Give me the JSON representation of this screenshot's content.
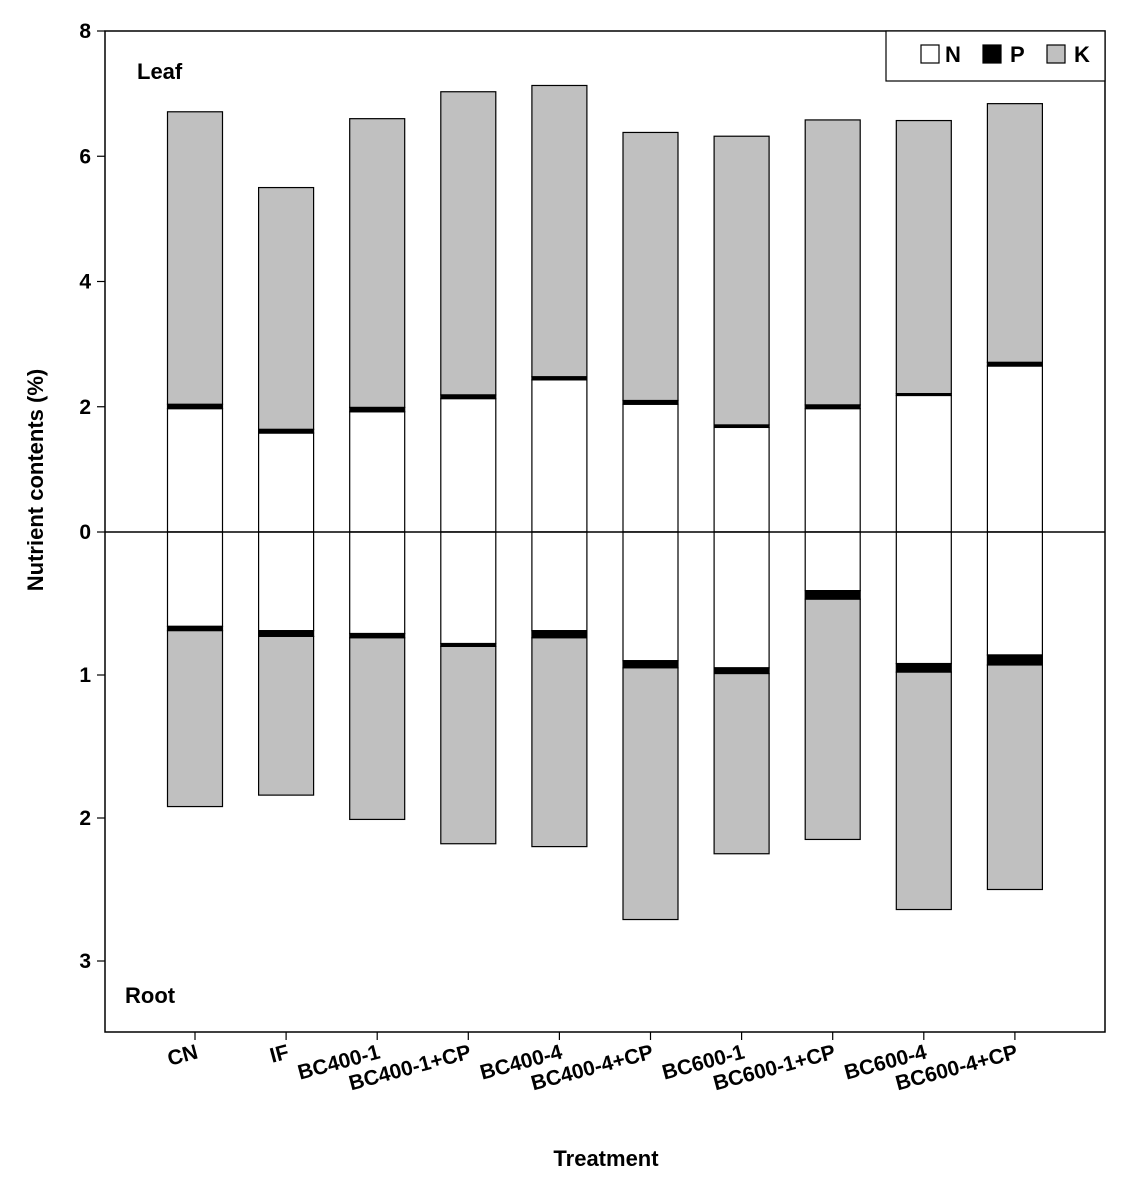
{
  "chart_data": {
    "type": "bar",
    "stacked": true,
    "diverging": true,
    "xlabel": "Treatment",
    "ylabel": "Nutrient contents (%)",
    "panels": {
      "top": "Leaf",
      "bottom": "Root"
    },
    "categories": [
      "CN",
      "IF",
      "BC400-1",
      "BC400-1+CP",
      "BC400-4",
      "BC400-4+CP",
      "BC600-1",
      "BC600-1+CP",
      "BC600-4",
      "BC600-4+CP"
    ],
    "leaf": {
      "ylim": [
        0,
        8
      ],
      "yticks": [
        "0",
        "2",
        "4",
        "6",
        "8"
      ],
      "series": [
        {
          "name": "N",
          "color": "#ffffff",
          "values": [
            1.97,
            1.58,
            1.92,
            2.13,
            2.43,
            2.04,
            1.67,
            1.97,
            2.18,
            2.65
          ]
        },
        {
          "name": "P",
          "color": "#000000",
          "values": [
            0.07,
            0.06,
            0.07,
            0.06,
            0.05,
            0.06,
            0.04,
            0.06,
            0.03,
            0.06
          ]
        },
        {
          "name": "K",
          "color": "#c0c0c0",
          "values": [
            4.67,
            3.86,
            4.61,
            4.84,
            4.65,
            4.28,
            4.61,
            4.55,
            4.36,
            4.13
          ]
        }
      ]
    },
    "root": {
      "ylim": [
        0,
        3.5
      ],
      "yticks": [
        "0",
        "1",
        "2",
        "3"
      ],
      "series": [
        {
          "name": "N",
          "color": "#ffffff",
          "values": [
            0.66,
            0.69,
            0.71,
            0.78,
            0.69,
            0.9,
            0.95,
            0.41,
            0.92,
            0.86
          ]
        },
        {
          "name": "P",
          "color": "#000000",
          "values": [
            0.03,
            0.04,
            0.03,
            0.02,
            0.05,
            0.05,
            0.04,
            0.06,
            0.06,
            0.07
          ]
        },
        {
          "name": "K",
          "color": "#c0c0c0",
          "values": [
            1.23,
            1.11,
            1.27,
            1.38,
            1.46,
            1.76,
            1.26,
            1.68,
            1.66,
            1.57
          ]
        }
      ]
    },
    "legend": {
      "position": "top-right",
      "entries": [
        "N",
        "P",
        "K"
      ]
    },
    "grid": false
  }
}
